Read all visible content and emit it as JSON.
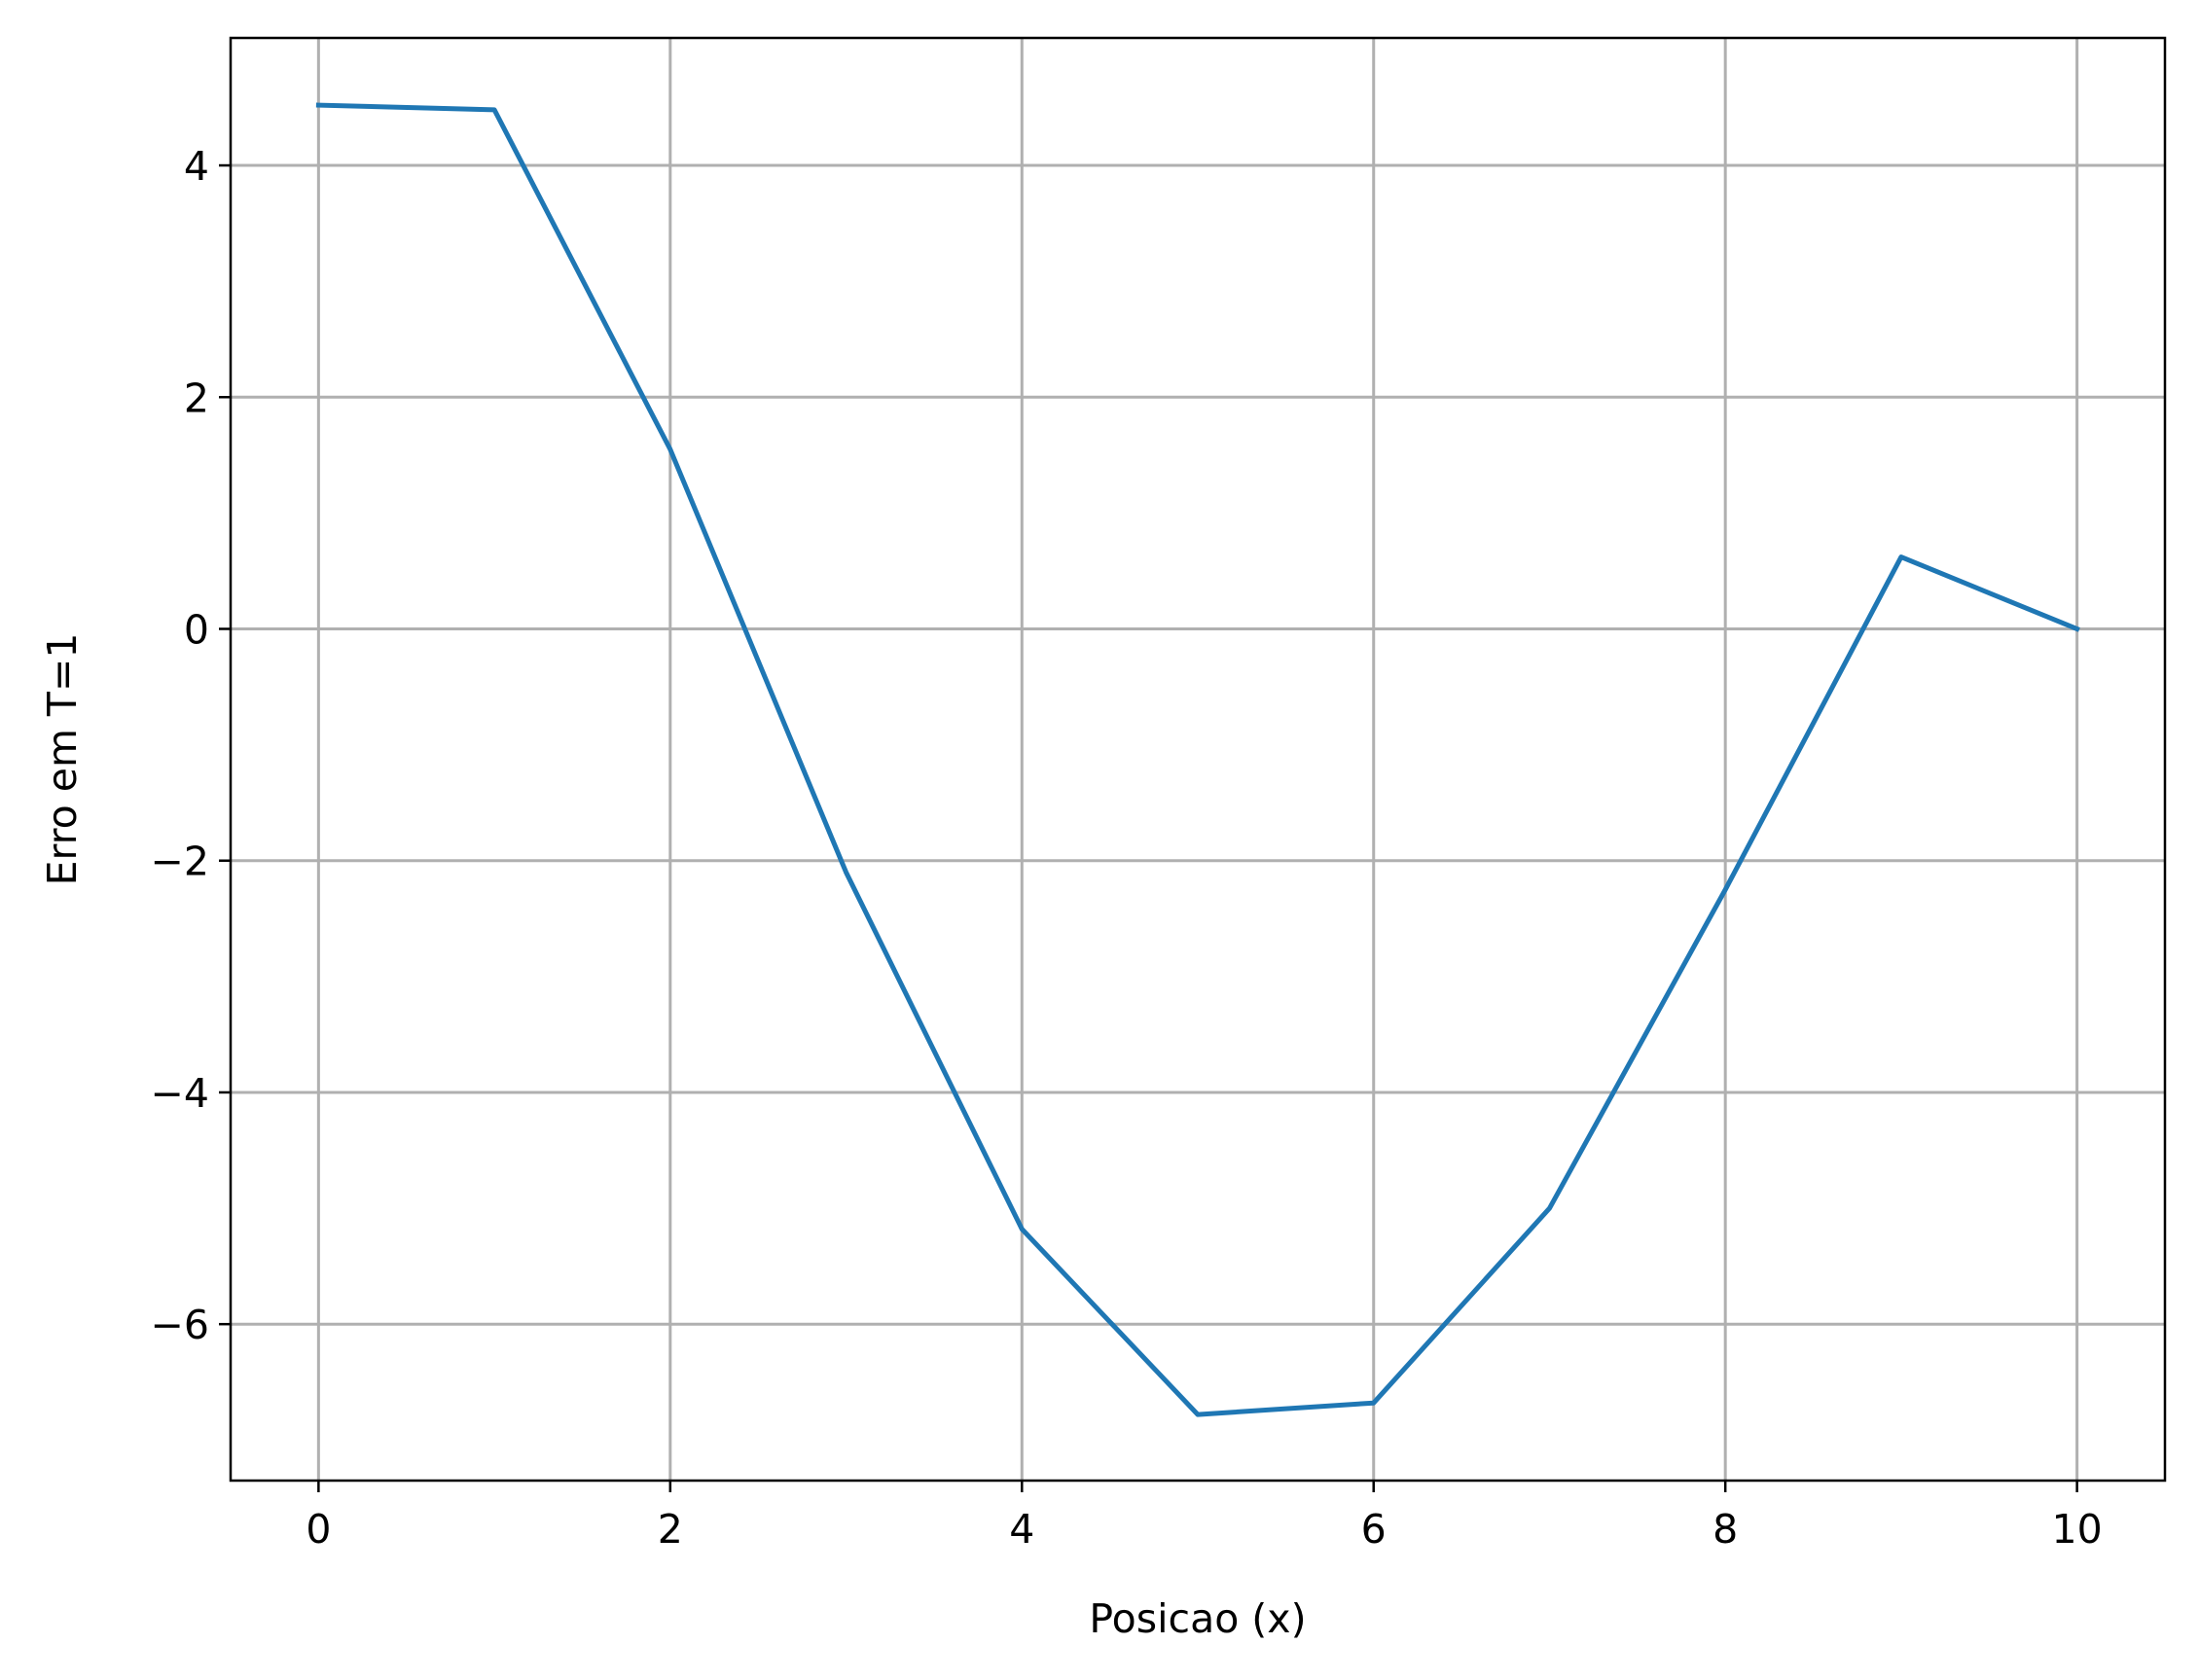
{
  "chart_data": {
    "type": "line",
    "title": "",
    "xlabel": "Posicao (x)",
    "ylabel": "Erro em T=1",
    "xlim": [
      -0.5,
      10.5
    ],
    "ylim": [
      -7.35,
      5.1
    ],
    "xticks": [
      0,
      2,
      4,
      6,
      8,
      10
    ],
    "yticks": [
      4,
      2,
      0,
      -2,
      -4,
      -6
    ],
    "xtick_labels": [
      "0",
      "2",
      "4",
      "6",
      "8",
      "10"
    ],
    "ytick_labels": [
      "4",
      "2",
      "0",
      "−2",
      "−4",
      "−6"
    ],
    "grid": true,
    "series": [
      {
        "color": "#1f77b4",
        "x": [
          0,
          1,
          2,
          3,
          4,
          5,
          6,
          7,
          8,
          9,
          10
        ],
        "y": [
          4.52,
          4.48,
          1.55,
          -2.1,
          -5.18,
          -6.78,
          -6.68,
          -5.0,
          -2.25,
          0.62,
          0.0
        ]
      }
    ]
  }
}
